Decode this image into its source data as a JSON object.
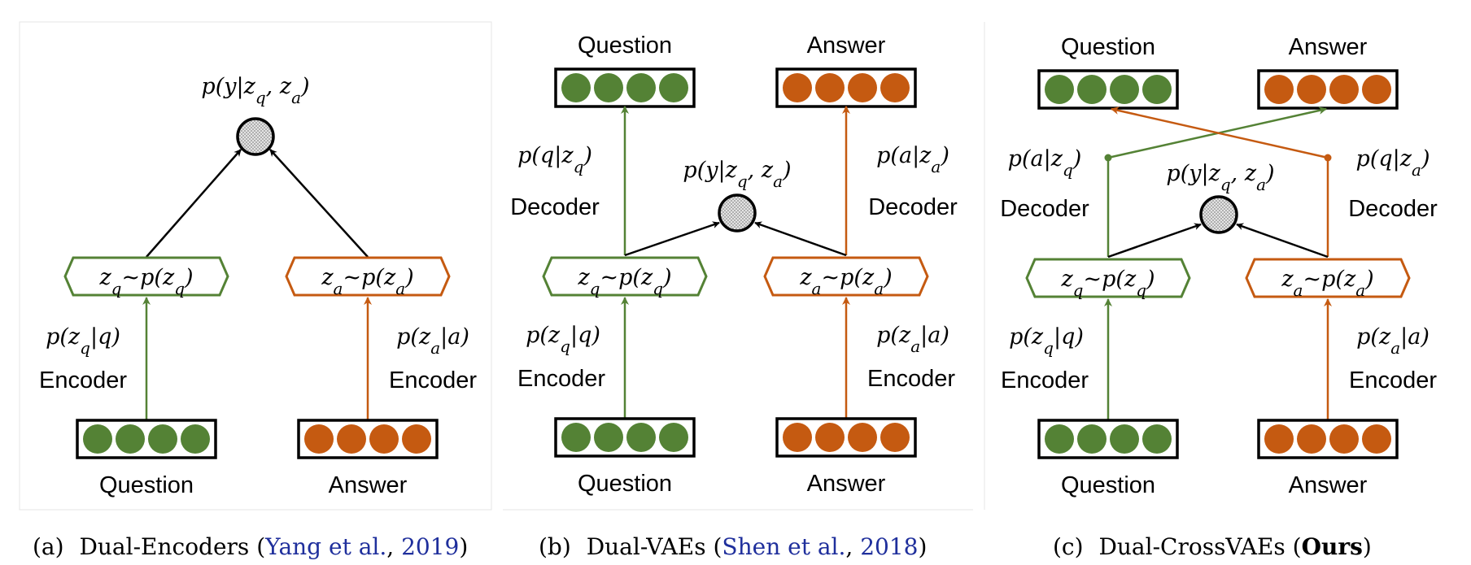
{
  "colors": {
    "question": "#548235",
    "answer": "#c55a11",
    "arrow": "#000000",
    "citation": "#1f2f9c"
  },
  "panels": [
    {
      "id": "a",
      "caption": {
        "prefix": "(a)",
        "name": "Dual-Encoders (",
        "cite_author": "Yang et al.",
        "cite_sep": ", ",
        "cite_year": "2019",
        "suffix": ")"
      },
      "question_label": "Question",
      "answer_label": "Answer",
      "encoder_label_q": "Encoder",
      "encoder_label_a": "Encoder",
      "enc_q": "p(z_q|q)",
      "enc_a": "p(z_a|a)",
      "latent_q": "z_q~p(z_q)",
      "latent_a": "z_a~p(z_a)",
      "score": "p(y|z_q, z_a)"
    },
    {
      "id": "b",
      "caption": {
        "prefix": "(b)",
        "name": "Dual-VAEs (",
        "cite_author": "Shen et al.",
        "cite_sep": ", ",
        "cite_year": "2018",
        "suffix": ")"
      },
      "question_label_top": "Question",
      "answer_label_top": "Answer",
      "question_label": "Question",
      "answer_label": "Answer",
      "encoder_label_q": "Encoder",
      "encoder_label_a": "Encoder",
      "decoder_label_q": "Decoder",
      "decoder_label_a": "Decoder",
      "enc_q": "p(z_q|q)",
      "enc_a": "p(z_a|a)",
      "dec_q": "p(q|z_q)",
      "dec_a": "p(a|z_a)",
      "latent_q": "z_q~p(z_q)",
      "latent_a": "z_a~p(z_a)",
      "score": "p(y|z_q, z_a)"
    },
    {
      "id": "c",
      "caption": {
        "prefix": "(c)",
        "name": "Dual-CrossVAEs (",
        "bold": "Ours",
        "suffix": ")"
      },
      "question_label_top": "Question",
      "answer_label_top": "Answer",
      "question_label": "Question",
      "answer_label": "Answer",
      "encoder_label_q": "Encoder",
      "encoder_label_a": "Encoder",
      "decoder_label_q": "Decoder",
      "decoder_label_a": "Decoder",
      "enc_q": "p(z_q|q)",
      "enc_a": "p(z_a|a)",
      "dec_q": "p(a|z_q)",
      "dec_a": "p(q|z_a)",
      "latent_q": "z_q~p(z_q)",
      "latent_a": "z_a~p(z_a)",
      "score": "p(y|z_q, z_a)"
    }
  ]
}
